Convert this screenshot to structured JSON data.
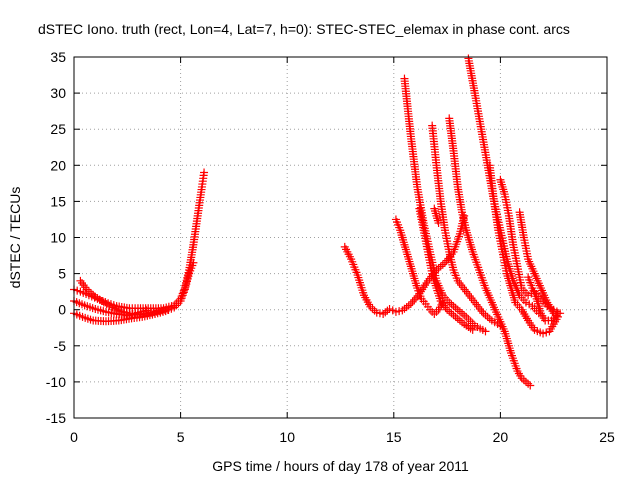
{
  "chart_data": {
    "type": "scatter",
    "title": "dSTEC Iono. truth (rect, Lon=4, Lat=7, h=0): STEC-STEC_elemax in phase cont. arcs",
    "xlabel": "GPS time / hours of day 178 of year 2011",
    "ylabel": "dSTEC  / TECUs",
    "xlim": [
      0,
      25
    ],
    "ylim": [
      -15,
      35
    ],
    "x_ticks": [
      0,
      5,
      10,
      15,
      20,
      25
    ],
    "y_ticks": [
      -15,
      -10,
      -5,
      0,
      5,
      10,
      15,
      20,
      25,
      30,
      35
    ],
    "grid": true,
    "marker": "+",
    "color": "#ff0000",
    "arcs": [
      [
        [
          0.0,
          2.8
        ],
        [
          0.3,
          2.5
        ],
        [
          0.7,
          2.0
        ],
        [
          1.1,
          1.5
        ],
        [
          1.6,
          0.9
        ],
        [
          2.0,
          0.5
        ],
        [
          2.6,
          0.2
        ],
        [
          3.0,
          0.2
        ],
        [
          3.6,
          0.2
        ],
        [
          4.2,
          0.2
        ],
        [
          4.7,
          0.6
        ],
        [
          5.0,
          1.5
        ],
        [
          5.2,
          3.0
        ],
        [
          5.4,
          5.5
        ],
        [
          5.6,
          9.0
        ],
        [
          5.8,
          13.0
        ],
        [
          6.0,
          17.0
        ],
        [
          6.1,
          19.0
        ]
      ],
      [
        [
          0.0,
          -0.5
        ],
        [
          0.4,
          -1.0
        ],
        [
          0.9,
          -1.5
        ],
        [
          1.5,
          -1.6
        ],
        [
          2.1,
          -1.5
        ],
        [
          2.7,
          -1.2
        ],
        [
          3.2,
          -1.0
        ],
        [
          3.8,
          -0.6
        ],
        [
          4.3,
          -0.2
        ],
        [
          4.7,
          0.3
        ],
        [
          5.0,
          1.2
        ],
        [
          5.2,
          2.8
        ],
        [
          5.4,
          5.0
        ],
        [
          5.6,
          6.5
        ]
      ],
      [
        [
          0.3,
          4.0
        ],
        [
          0.6,
          2.8
        ],
        [
          1.0,
          1.8
        ],
        [
          1.4,
          1.0
        ],
        [
          1.8,
          0.3
        ],
        [
          2.2,
          -0.2
        ],
        [
          2.6,
          -0.5
        ],
        [
          3.0,
          -0.7
        ],
        [
          3.5,
          -0.5
        ],
        [
          4.0,
          -0.2
        ],
        [
          4.4,
          0.0
        ]
      ],
      [
        [
          0.0,
          1.2
        ],
        [
          0.5,
          0.6
        ],
        [
          1.0,
          0.1
        ],
        [
          1.5,
          -0.3
        ],
        [
          2.0,
          -0.6
        ],
        [
          2.5,
          -0.8
        ],
        [
          3.0,
          -0.4
        ],
        [
          3.4,
          -0.1
        ]
      ],
      [
        [
          12.7,
          8.7
        ],
        [
          13.0,
          7.0
        ],
        [
          13.3,
          4.8
        ],
        [
          13.6,
          2.0
        ],
        [
          13.9,
          0.4
        ],
        [
          14.2,
          -0.4
        ],
        [
          14.5,
          -0.6
        ],
        [
          14.8,
          0.1
        ],
        [
          15.1,
          -0.3
        ],
        [
          15.4,
          -0.1
        ],
        [
          15.8,
          0.8
        ],
        [
          16.2,
          2.2
        ],
        [
          16.6,
          4.0
        ],
        [
          17.0,
          5.5
        ],
        [
          17.4,
          6.5
        ],
        [
          17.8,
          8.0
        ],
        [
          18.1,
          10.5
        ],
        [
          18.3,
          13.0
        ]
      ],
      [
        [
          15.1,
          12.5
        ],
        [
          15.3,
          11.0
        ],
        [
          15.5,
          9.0
        ],
        [
          15.7,
          7.0
        ],
        [
          15.9,
          5.0
        ],
        [
          16.1,
          3.0
        ],
        [
          16.3,
          1.5
        ],
        [
          16.5,
          0.8
        ],
        [
          16.7,
          0.0
        ],
        [
          16.9,
          -0.6
        ],
        [
          17.1,
          0.0
        ],
        [
          17.3,
          1.0
        ]
      ],
      [
        [
          15.5,
          32.0
        ],
        [
          15.8,
          24.0
        ],
        [
          16.1,
          17.0
        ],
        [
          16.4,
          12.0
        ],
        [
          16.7,
          8.0
        ],
        [
          17.0,
          4.0
        ],
        [
          17.3,
          2.0
        ],
        [
          17.6,
          1.0
        ],
        [
          18.0,
          0.0
        ],
        [
          18.4,
          -1.0
        ],
        [
          18.8,
          -2.2
        ],
        [
          19.3,
          -3.0
        ]
      ],
      [
        [
          16.2,
          14.0
        ],
        [
          16.4,
          11.0
        ],
        [
          16.6,
          8.0
        ],
        [
          16.8,
          5.0
        ],
        [
          17.0,
          3.0
        ],
        [
          17.2,
          1.2
        ],
        [
          17.5,
          0.0
        ],
        [
          17.9,
          -1.0
        ],
        [
          18.3,
          -2.0
        ],
        [
          18.7,
          -2.8
        ]
      ],
      [
        [
          16.8,
          25.5
        ],
        [
          17.0,
          20.0
        ],
        [
          17.2,
          15.0
        ],
        [
          17.4,
          11.0
        ],
        [
          17.6,
          8.0
        ],
        [
          17.8,
          5.5
        ],
        [
          18.0,
          4.0
        ],
        [
          18.4,
          2.5
        ],
        [
          18.8,
          1.0
        ],
        [
          19.2,
          -0.5
        ],
        [
          19.6,
          -1.5
        ],
        [
          20.0,
          -2.2
        ]
      ],
      [
        [
          16.9,
          14.0
        ],
        [
          17.1,
          12.0
        ]
      ],
      [
        [
          17.6,
          26.5
        ],
        [
          17.8,
          22.0
        ],
        [
          18.0,
          17.0
        ],
        [
          18.2,
          13.5
        ],
        [
          18.4,
          11.0
        ],
        [
          18.7,
          8.0
        ],
        [
          19.0,
          5.5
        ],
        [
          19.3,
          3.0
        ],
        [
          19.6,
          1.0
        ],
        [
          19.9,
          -1.0
        ],
        [
          20.2,
          -3.0
        ],
        [
          20.5,
          -6.0
        ],
        [
          20.8,
          -8.5
        ],
        [
          21.0,
          -9.5
        ],
        [
          21.2,
          -10.0
        ],
        [
          21.4,
          -10.5
        ]
      ],
      [
        [
          18.5,
          34.8
        ],
        [
          18.8,
          30.0
        ],
        [
          19.1,
          25.0
        ],
        [
          19.4,
          20.0
        ],
        [
          19.7,
          15.0
        ],
        [
          20.0,
          11.0
        ],
        [
          20.3,
          7.0
        ],
        [
          20.6,
          4.0
        ],
        [
          20.9,
          2.0
        ],
        [
          21.2,
          1.0
        ],
        [
          21.5,
          0.5
        ],
        [
          21.8,
          -0.5
        ]
      ],
      [
        [
          19.5,
          20.0
        ],
        [
          19.7,
          15.0
        ],
        [
          19.9,
          11.0
        ],
        [
          20.1,
          8.0
        ],
        [
          20.3,
          5.0
        ],
        [
          20.5,
          3.0
        ],
        [
          20.7,
          1.0
        ],
        [
          21.0,
          0.0
        ],
        [
          21.3,
          -1.5
        ],
        [
          21.6,
          -2.8
        ],
        [
          22.0,
          -3.3
        ],
        [
          22.3,
          -3.0
        ],
        [
          22.7,
          -1.0
        ]
      ],
      [
        [
          20.0,
          18.0
        ],
        [
          20.2,
          16.0
        ],
        [
          20.4,
          13.0
        ],
        [
          20.6,
          9.0
        ],
        [
          20.8,
          6.0
        ],
        [
          21.0,
          3.0
        ],
        [
          21.3,
          2.0
        ],
        [
          21.6,
          2.5
        ],
        [
          21.9,
          1.5
        ],
        [
          22.2,
          0.5
        ],
        [
          22.5,
          0.0
        ],
        [
          22.8,
          -0.5
        ]
      ],
      [
        [
          20.9,
          13.5
        ],
        [
          21.1,
          10.0
        ],
        [
          21.3,
          7.0
        ],
        [
          21.6,
          5.0
        ],
        [
          21.9,
          3.0
        ],
        [
          22.2,
          1.0
        ],
        [
          22.5,
          -0.5
        ],
        [
          22.7,
          -1.0
        ]
      ],
      [
        [
          21.3,
          4.5
        ],
        [
          21.5,
          3.0
        ],
        [
          21.7,
          1.5
        ],
        [
          21.9,
          -0.5
        ],
        [
          22.1,
          -1.5
        ],
        [
          22.4,
          -1.5
        ],
        [
          22.7,
          -0.5
        ]
      ]
    ]
  }
}
